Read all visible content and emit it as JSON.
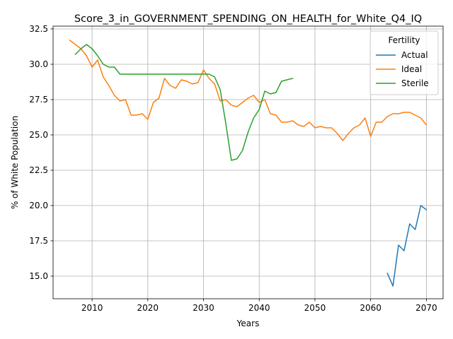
{
  "chart_data": {
    "type": "line",
    "title": "Score_3_in_GOVERNMENT_SPENDING_ON_HEALTH_for_White_Q4_IQ",
    "xlabel": "Years",
    "ylabel": "% of White Population",
    "xlim": [
      2003,
      2073
    ],
    "ylim": [
      13.4,
      32.7
    ],
    "xticks": [
      2010,
      2020,
      2030,
      2040,
      2050,
      2060,
      2070
    ],
    "xtick_labels": [
      "2010",
      "2020",
      "2030",
      "2040",
      "2050",
      "2060",
      "2070"
    ],
    "yticks": [
      15.0,
      17.5,
      20.0,
      22.5,
      25.0,
      27.5,
      30.0,
      32.5
    ],
    "ytick_labels": [
      "15.0",
      "17.5",
      "20.0",
      "22.5",
      "25.0",
      "27.5",
      "30.0",
      "32.5"
    ],
    "grid": true,
    "legend": {
      "title": "Fertility",
      "position": "top-right"
    },
    "series": [
      {
        "name": "Actual",
        "color": "#1f77b4",
        "x": [
          2063,
          2064,
          2065,
          2066,
          2067,
          2068,
          2069,
          2070
        ],
        "y": [
          15.2,
          14.3,
          17.2,
          16.8,
          18.7,
          18.3,
          20.0,
          19.7
        ]
      },
      {
        "name": "Ideal",
        "color": "#ff7f0e",
        "x": [
          2006,
          2007,
          2008,
          2009,
          2010,
          2011,
          2012,
          2013,
          2014,
          2015,
          2016,
          2017,
          2018,
          2019,
          2020,
          2021,
          2022,
          2023,
          2024,
          2025,
          2026,
          2027,
          2028,
          2029,
          2030,
          2031,
          2032,
          2033,
          2034,
          2035,
          2036,
          2037,
          2038,
          2039,
          2040,
          2041,
          2042,
          2043,
          2044,
          2045,
          2046,
          2047,
          2048,
          2049,
          2050,
          2051,
          2052,
          2053,
          2054,
          2055,
          2056,
          2057,
          2058,
          2059,
          2060,
          2061,
          2062,
          2063,
          2064,
          2065,
          2066,
          2067,
          2068,
          2069,
          2070
        ],
        "y": [
          31.7,
          31.4,
          31.1,
          30.6,
          29.8,
          30.3,
          29.1,
          28.5,
          27.8,
          27.4,
          27.5,
          26.4,
          26.4,
          26.5,
          26.1,
          27.3,
          27.6,
          29.0,
          28.5,
          28.3,
          28.9,
          28.8,
          28.6,
          28.7,
          29.6,
          29.0,
          28.6,
          27.4,
          27.5,
          27.1,
          27.0,
          27.3,
          27.6,
          27.8,
          27.3,
          27.5,
          26.5,
          26.4,
          25.9,
          25.9,
          26.0,
          25.7,
          25.6,
          25.9,
          25.5,
          25.6,
          25.5,
          25.5,
          25.1,
          24.6,
          25.1,
          25.5,
          25.7,
          26.2,
          24.9,
          25.9,
          25.9,
          26.3,
          26.5,
          26.5,
          26.6,
          26.6,
          26.4,
          26.2,
          25.7
        ]
      },
      {
        "name": "Sterile",
        "color": "#2ca02c",
        "x": [
          2007,
          2008,
          2009,
          2010,
          2011,
          2012,
          2013,
          2014,
          2015,
          2016,
          2017,
          2018,
          2019,
          2020,
          2021,
          2022,
          2023,
          2024,
          2025,
          2026,
          2027,
          2028,
          2029,
          2030,
          2031,
          2032,
          2033,
          2034,
          2035,
          2036,
          2037,
          2038,
          2039,
          2040,
          2041,
          2042,
          2043,
          2044,
          2045,
          2046
        ],
        "y": [
          30.7,
          31.1,
          31.4,
          31.1,
          30.6,
          30.0,
          29.8,
          29.8,
          29.3,
          29.3,
          29.3,
          29.3,
          29.3,
          29.3,
          29.3,
          29.3,
          29.3,
          29.3,
          29.3,
          29.3,
          29.3,
          29.3,
          29.3,
          29.3,
          29.3,
          29.1,
          28.2,
          25.8,
          23.2,
          23.3,
          23.9,
          25.2,
          26.2,
          26.8,
          28.1,
          27.9,
          28.0,
          28.8,
          28.9,
          29.0
        ]
      }
    ]
  }
}
